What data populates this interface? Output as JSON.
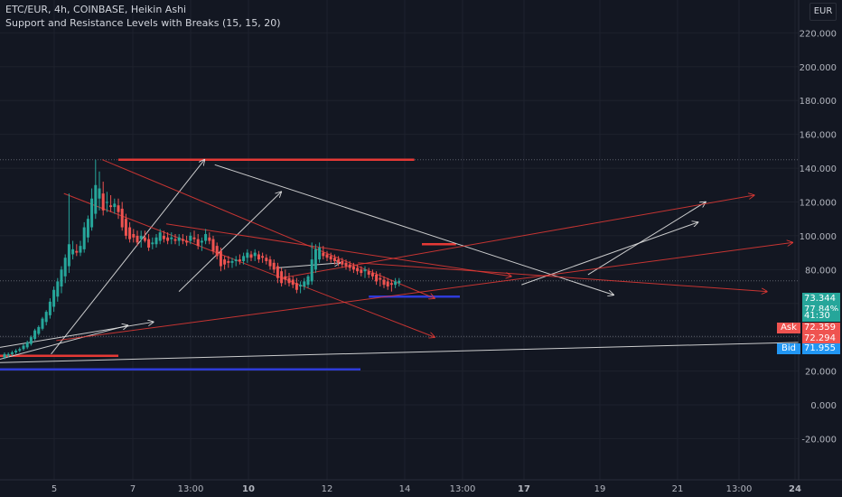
{
  "header": {
    "title": "ETC/EUR, 4h, COINBASE, Heikin Ashi",
    "indicator": "Support and Resistance Levels with Breaks (15, 15, 20)",
    "currency": "EUR"
  },
  "price_tag": {
    "price": "73.344",
    "percent": "77.84%",
    "countdown": "41:30",
    "ask_label": "Ask",
    "ask_value": "72.359",
    "mid_value": "72.294",
    "bid_label": "Bid",
    "bid_value": "71.955"
  },
  "colors": {
    "background": "#131722",
    "bull": "#26a69a",
    "bear": "#ef5350",
    "resistance": "#e53935",
    "support": "#2e3bd8",
    "trendline": "#e0e0e0"
  },
  "chart_data": {
    "type": "candlestick",
    "style": "Heikin Ashi",
    "symbol": "ETC/EUR",
    "interval": "4h",
    "exchange": "COINBASE",
    "ylim": [
      -20,
      220
    ],
    "y_ticks": [
      "220.000",
      "200.000",
      "180.000",
      "160.000",
      "140.000",
      "120.000",
      "100.000",
      "80.000",
      "60.000",
      "40.000",
      "20.000",
      "0.000",
      "-20.000"
    ],
    "x_ticks": [
      "5",
      "7",
      "13:00",
      "10",
      "12",
      "14",
      "13:00",
      "17",
      "19",
      "21",
      "13:00",
      "24"
    ],
    "x_tick_bold": [
      "10",
      "17",
      "24"
    ],
    "last_price": 73.344,
    "candles": [
      {
        "o": 28,
        "h": 31,
        "l": 27,
        "c": 30
      },
      {
        "o": 29,
        "h": 31,
        "l": 28,
        "c": 30
      },
      {
        "o": 30,
        "h": 32,
        "l": 29,
        "c": 31
      },
      {
        "o": 31,
        "h": 33,
        "l": 30,
        "c": 32
      },
      {
        "o": 32,
        "h": 34,
        "l": 31,
        "c": 33
      },
      {
        "o": 33,
        "h": 36,
        "l": 32,
        "c": 35
      },
      {
        "o": 34,
        "h": 38,
        "l": 33,
        "c": 37
      },
      {
        "o": 36,
        "h": 41,
        "l": 35,
        "c": 40
      },
      {
        "o": 39,
        "h": 45,
        "l": 38,
        "c": 44
      },
      {
        "o": 42,
        "h": 47,
        "l": 41,
        "c": 46
      },
      {
        "o": 45,
        "h": 52,
        "l": 44,
        "c": 51
      },
      {
        "o": 49,
        "h": 56,
        "l": 47,
        "c": 55
      },
      {
        "o": 53,
        "h": 63,
        "l": 51,
        "c": 61
      },
      {
        "o": 58,
        "h": 70,
        "l": 55,
        "c": 68
      },
      {
        "o": 64,
        "h": 75,
        "l": 61,
        "c": 73
      },
      {
        "o": 70,
        "h": 82,
        "l": 66,
        "c": 80
      },
      {
        "o": 76,
        "h": 89,
        "l": 72,
        "c": 87
      },
      {
        "o": 82,
        "h": 125,
        "l": 78,
        "c": 95
      },
      {
        "o": 89,
        "h": 97,
        "l": 86,
        "c": 92
      },
      {
        "o": 91,
        "h": 95,
        "l": 88,
        "c": 90
      },
      {
        "o": 90,
        "h": 97,
        "l": 88,
        "c": 94
      },
      {
        "o": 92,
        "h": 108,
        "l": 90,
        "c": 105
      },
      {
        "o": 99,
        "h": 112,
        "l": 96,
        "c": 110
      },
      {
        "o": 105,
        "h": 128,
        "l": 103,
        "c": 122
      },
      {
        "o": 113,
        "h": 145,
        "l": 110,
        "c": 130
      },
      {
        "o": 122,
        "h": 138,
        "l": 115,
        "c": 128
      },
      {
        "o": 125,
        "h": 132,
        "l": 112,
        "c": 115
      },
      {
        "o": 120,
        "h": 126,
        "l": 114,
        "c": 120
      },
      {
        "o": 118,
        "h": 124,
        "l": 114,
        "c": 117
      },
      {
        "o": 117,
        "h": 122,
        "l": 113,
        "c": 119
      },
      {
        "o": 118,
        "h": 122,
        "l": 110,
        "c": 114
      },
      {
        "o": 116,
        "h": 120,
        "l": 103,
        "c": 105
      },
      {
        "o": 110,
        "h": 113,
        "l": 98,
        "c": 100
      },
      {
        "o": 105,
        "h": 108,
        "l": 96,
        "c": 98
      },
      {
        "o": 101,
        "h": 104,
        "l": 96,
        "c": 99
      },
      {
        "o": 100,
        "h": 103,
        "l": 94,
        "c": 96
      },
      {
        "o": 98,
        "h": 103,
        "l": 93,
        "c": 100
      },
      {
        "o": 99,
        "h": 103,
        "l": 96,
        "c": 97
      },
      {
        "o": 98,
        "h": 101,
        "l": 91,
        "c": 93
      },
      {
        "o": 95,
        "h": 99,
        "l": 92,
        "c": 96
      },
      {
        "o": 95,
        "h": 101,
        "l": 93,
        "c": 99
      },
      {
        "o": 97,
        "h": 104,
        "l": 95,
        "c": 102
      },
      {
        "o": 100,
        "h": 103,
        "l": 96,
        "c": 98
      },
      {
        "o": 99,
        "h": 102,
        "l": 95,
        "c": 97
      },
      {
        "o": 98,
        "h": 102,
        "l": 95,
        "c": 99
      },
      {
        "o": 98,
        "h": 101,
        "l": 95,
        "c": 97
      },
      {
        "o": 97,
        "h": 101,
        "l": 94,
        "c": 99
      },
      {
        "o": 98,
        "h": 101,
        "l": 95,
        "c": 97
      },
      {
        "o": 97,
        "h": 100,
        "l": 94,
        "c": 96
      },
      {
        "o": 97,
        "h": 102,
        "l": 95,
        "c": 100
      },
      {
        "o": 99,
        "h": 103,
        "l": 96,
        "c": 98
      },
      {
        "o": 98,
        "h": 101,
        "l": 92,
        "c": 94
      },
      {
        "o": 96,
        "h": 99,
        "l": 91,
        "c": 97
      },
      {
        "o": 97,
        "h": 104,
        "l": 95,
        "c": 101
      },
      {
        "o": 99,
        "h": 102,
        "l": 95,
        "c": 97
      },
      {
        "o": 98,
        "h": 100,
        "l": 89,
        "c": 91
      },
      {
        "o": 94,
        "h": 96,
        "l": 86,
        "c": 88
      },
      {
        "o": 91,
        "h": 93,
        "l": 79,
        "c": 82
      },
      {
        "o": 86,
        "h": 88,
        "l": 80,
        "c": 83
      },
      {
        "o": 85,
        "h": 88,
        "l": 81,
        "c": 84
      },
      {
        "o": 84,
        "h": 87,
        "l": 81,
        "c": 85
      },
      {
        "o": 85,
        "h": 88,
        "l": 82,
        "c": 86
      },
      {
        "o": 86,
        "h": 89,
        "l": 83,
        "c": 85
      },
      {
        "o": 85,
        "h": 90,
        "l": 83,
        "c": 88
      },
      {
        "o": 87,
        "h": 92,
        "l": 84,
        "c": 90
      },
      {
        "o": 89,
        "h": 91,
        "l": 85,
        "c": 87
      },
      {
        "o": 88,
        "h": 92,
        "l": 85,
        "c": 90
      },
      {
        "o": 89,
        "h": 91,
        "l": 84,
        "c": 86
      },
      {
        "o": 88,
        "h": 90,
        "l": 84,
        "c": 87
      },
      {
        "o": 87,
        "h": 89,
        "l": 83,
        "c": 85
      },
      {
        "o": 86,
        "h": 88,
        "l": 80,
        "c": 82
      },
      {
        "o": 84,
        "h": 86,
        "l": 78,
        "c": 80
      },
      {
        "o": 82,
        "h": 84,
        "l": 72,
        "c": 75
      },
      {
        "o": 79,
        "h": 81,
        "l": 70,
        "c": 72
      },
      {
        "o": 76,
        "h": 80,
        "l": 71,
        "c": 74
      },
      {
        "o": 75,
        "h": 78,
        "l": 70,
        "c": 72
      },
      {
        "o": 74,
        "h": 76,
        "l": 69,
        "c": 71
      },
      {
        "o": 72,
        "h": 75,
        "l": 66,
        "c": 68
      },
      {
        "o": 70,
        "h": 73,
        "l": 66,
        "c": 71
      },
      {
        "o": 70,
        "h": 75,
        "l": 68,
        "c": 73
      },
      {
        "o": 71,
        "h": 77,
        "l": 69,
        "c": 76
      },
      {
        "o": 73,
        "h": 96,
        "l": 71,
        "c": 86
      },
      {
        "o": 80,
        "h": 95,
        "l": 78,
        "c": 92
      },
      {
        "o": 86,
        "h": 96,
        "l": 84,
        "c": 93
      },
      {
        "o": 90,
        "h": 94,
        "l": 86,
        "c": 88
      },
      {
        "o": 89,
        "h": 91,
        "l": 85,
        "c": 87
      },
      {
        "o": 88,
        "h": 90,
        "l": 84,
        "c": 86
      },
      {
        "o": 87,
        "h": 89,
        "l": 83,
        "c": 85
      },
      {
        "o": 86,
        "h": 88,
        "l": 82,
        "c": 84
      },
      {
        "o": 85,
        "h": 87,
        "l": 81,
        "c": 83
      },
      {
        "o": 84,
        "h": 86,
        "l": 80,
        "c": 82
      },
      {
        "o": 83,
        "h": 85,
        "l": 79,
        "c": 81
      },
      {
        "o": 82,
        "h": 84,
        "l": 78,
        "c": 80
      },
      {
        "o": 81,
        "h": 83,
        "l": 77,
        "c": 79
      },
      {
        "o": 80,
        "h": 82,
        "l": 76,
        "c": 78
      },
      {
        "o": 79,
        "h": 82,
        "l": 75,
        "c": 80
      },
      {
        "o": 79,
        "h": 81,
        "l": 75,
        "c": 77
      },
      {
        "o": 78,
        "h": 80,
        "l": 74,
        "c": 76
      },
      {
        "o": 77,
        "h": 79,
        "l": 71,
        "c": 73
      },
      {
        "o": 75,
        "h": 78,
        "l": 70,
        "c": 74
      },
      {
        "o": 74,
        "h": 76,
        "l": 69,
        "c": 71
      },
      {
        "o": 73,
        "h": 75,
        "l": 68,
        "c": 70
      },
      {
        "o": 72,
        "h": 74,
        "l": 67,
        "c": 71
      },
      {
        "o": 71,
        "h": 75,
        "l": 69,
        "c": 73
      },
      {
        "o": 72,
        "h": 75,
        "l": 70,
        "c": 73.344
      }
    ],
    "levels": [
      {
        "kind": "resistance",
        "price": 145
      },
      {
        "kind": "resistance",
        "price": 95
      },
      {
        "kind": "resistance",
        "price": 29
      },
      {
        "kind": "support",
        "price": 64
      },
      {
        "kind": "support",
        "price": 21
      }
    ],
    "trendlines": [
      {
        "color": "white",
        "from": [
          0,
          27
        ],
        "to": [
          5,
          47
        ]
      },
      {
        "color": "white",
        "from": [
          2,
          30
        ],
        "to": [
          8,
          145
        ]
      },
      {
        "color": "white",
        "from": [
          7,
          67
        ],
        "to": [
          11,
          126
        ]
      },
      {
        "color": "white",
        "from": [
          0,
          34
        ],
        "to": [
          6,
          49
        ]
      },
      {
        "color": "white",
        "from": [
          8.4,
          142
        ],
        "to": [
          24,
          65
        ]
      },
      {
        "color": "white",
        "from": [
          20.4,
          71
        ],
        "to": [
          27.3,
          108
        ]
      },
      {
        "color": "white",
        "from": [
          23,
          77
        ],
        "to": [
          27.6,
          120
        ]
      },
      {
        "color": "white",
        "from": [
          0,
          25
        ],
        "to": [
          34,
          38
        ]
      },
      {
        "color": "white",
        "from": [
          10.8,
          81
        ],
        "to": [
          13.3,
          84
        ]
      },
      {
        "color": "red",
        "from": [
          4,
          145
        ],
        "to": [
          17,
          63
        ]
      },
      {
        "color": "red",
        "from": [
          2.5,
          125
        ],
        "to": [
          17,
          40
        ]
      },
      {
        "color": "red",
        "from": [
          6.5,
          107
        ],
        "to": [
          20,
          76
        ]
      },
      {
        "color": "red",
        "from": [
          11,
          75
        ],
        "to": [
          29.5,
          124
        ]
      },
      {
        "color": "red",
        "from": [
          2.2,
          38
        ],
        "to": [
          31,
          96
        ]
      },
      {
        "color": "red",
        "from": [
          14,
          84
        ],
        "to": [
          30,
          67
        ]
      }
    ]
  }
}
